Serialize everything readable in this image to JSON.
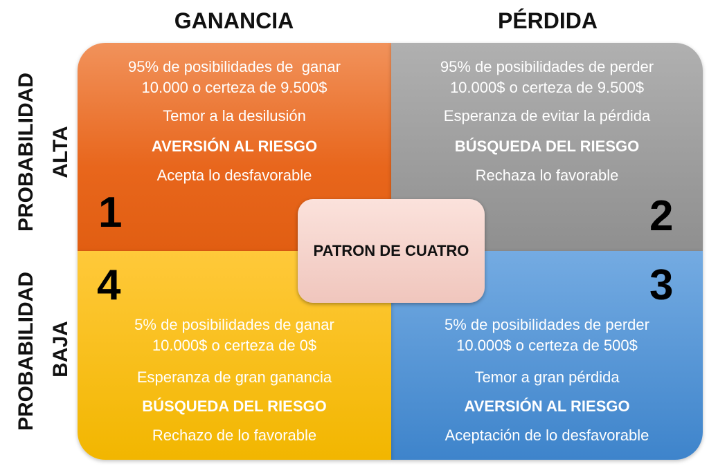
{
  "columns": [
    "GANANCIA",
    "PÉRDIDA"
  ],
  "rows": [
    {
      "label": "PROBABILIDAD",
      "level": "ALTA"
    },
    {
      "label": "PROBABILIDAD",
      "level": "BAJA"
    }
  ],
  "center": "PATRON DE CUATRO",
  "quadrants": [
    {
      "number": "1",
      "lines": [
        "95% de posibilidades de  ganar",
        "10.000 o certeza de 9.500$"
      ],
      "emotion": "Temor a la desilusión",
      "attitude": "AVERSIÓN AL RIESGO",
      "behavior": "Acepta lo desfavorable"
    },
    {
      "number": "2",
      "lines": [
        "95% de posibilidades de perder",
        "10.000$ o certeza de 9.500$"
      ],
      "emotion": "Esperanza de evitar la pérdida",
      "attitude": "BÚSQUEDA DEL RIESGO",
      "behavior": "Rechaza lo favorable"
    },
    {
      "number": "3",
      "lines": [
        "5% de posibilidades de perder",
        "10.000$ o certeza de 500$"
      ],
      "emotion": "Temor a gran pérdida",
      "attitude": "AVERSIÓN AL RIESGO",
      "behavior": "Aceptación de lo desfavorable"
    },
    {
      "number": "4",
      "lines": [
        "5% de posibilidades de ganar",
        "10.000$ o certeza de 0$"
      ],
      "emotion": "Esperanza de gran ganancia",
      "attitude": "BÚSQUEDA DEL RIESGO",
      "behavior": "Rechazo de lo favorable"
    }
  ]
}
